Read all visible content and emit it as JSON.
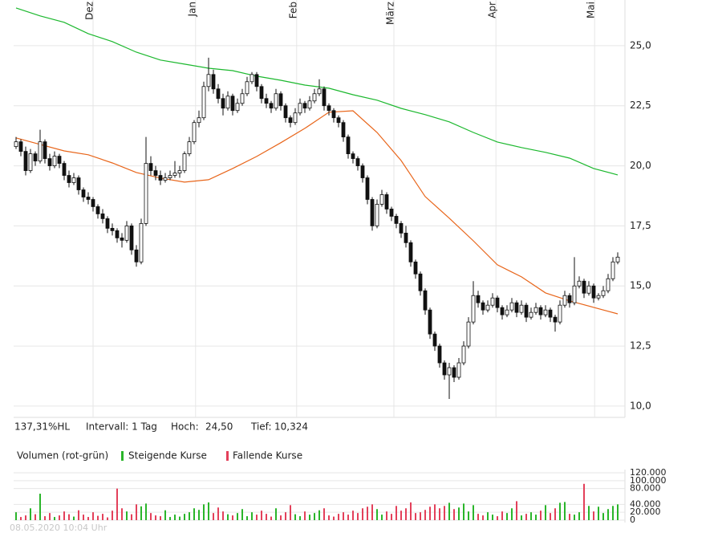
{
  "info": {
    "range": "137,31%HL",
    "interval": "Intervall: 1 Tag",
    "high_label": "Hoch:",
    "high": "24,50",
    "low_label": "Tief:",
    "low": "10,324",
    "timestamp": "08.05.2020 10:04 Uhr"
  },
  "chart_data": [
    {
      "type": "candlestick",
      "xlim": [
        -0.5,
        126.5
      ],
      "ylim": [
        9.53,
        26.9
      ],
      "xticks": [
        {
          "value": 16,
          "label": "Dez"
        },
        {
          "value": 37.3,
          "label": "Jan"
        },
        {
          "value": 58.3,
          "label": "Feb"
        },
        {
          "value": 78.5,
          "label": "März"
        },
        {
          "value": 99.7,
          "label": "Apr"
        },
        {
          "value": 120.2,
          "label": "Mai"
        }
      ],
      "yticks": [
        {
          "value": 10,
          "label": "10,0"
        },
        {
          "value": 12.5,
          "label": "12,5"
        },
        {
          "value": 15,
          "label": "15,0"
        },
        {
          "value": 17.5,
          "label": "17,5"
        },
        {
          "value": 20,
          "label": "20,0"
        },
        {
          "value": 22.5,
          "label": "22,5"
        },
        {
          "value": 25,
          "label": "25,0"
        }
      ],
      "grid": true,
      "up_color": "#ffffff",
      "down_color": "#111111",
      "candles": [
        [
          20.8,
          21.2,
          20.7,
          21.0
        ],
        [
          21.0,
          21.1,
          20.4,
          20.6
        ],
        [
          20.6,
          20.8,
          19.6,
          19.8
        ],
        [
          19.8,
          20.7,
          19.7,
          20.5
        ],
        [
          20.5,
          20.6,
          20.0,
          20.2
        ],
        [
          20.2,
          21.5,
          20.1,
          21.0
        ],
        [
          21.0,
          21.1,
          20.1,
          20.3
        ],
        [
          20.3,
          20.5,
          19.8,
          20.0
        ],
        [
          20.0,
          20.6,
          19.9,
          20.4
        ],
        [
          20.4,
          20.5,
          19.9,
          20.1
        ],
        [
          20.1,
          20.2,
          19.4,
          19.6
        ],
        [
          19.6,
          19.8,
          19.1,
          19.3
        ],
        [
          19.3,
          19.7,
          19.2,
          19.5
        ],
        [
          19.5,
          19.6,
          18.8,
          19.0
        ],
        [
          19.0,
          19.1,
          18.5,
          18.7
        ],
        [
          18.7,
          18.9,
          18.4,
          18.6
        ],
        [
          18.6,
          18.7,
          18.1,
          18.3
        ],
        [
          18.3,
          18.4,
          17.8,
          18.0
        ],
        [
          18.0,
          18.2,
          17.6,
          17.8
        ],
        [
          17.8,
          17.9,
          17.2,
          17.4
        ],
        [
          17.4,
          17.6,
          17.1,
          17.3
        ],
        [
          17.3,
          17.4,
          16.8,
          17.0
        ],
        [
          17.0,
          17.2,
          16.6,
          16.9
        ],
        [
          16.9,
          17.7,
          16.8,
          17.5
        ],
        [
          17.5,
          17.6,
          16.3,
          16.5
        ],
        [
          16.5,
          16.7,
          15.8,
          16.0
        ],
        [
          16.0,
          17.8,
          15.9,
          17.6
        ],
        [
          17.6,
          21.2,
          17.5,
          20.1
        ],
        [
          20.1,
          20.4,
          19.6,
          19.8
        ],
        [
          19.8,
          20.0,
          19.4,
          19.6
        ],
        [
          19.6,
          19.8,
          19.2,
          19.4
        ],
        [
          19.4,
          19.7,
          19.3,
          19.5
        ],
        [
          19.5,
          19.8,
          19.4,
          19.6
        ],
        [
          19.6,
          20.2,
          19.5,
          19.7
        ],
        [
          19.7,
          20.0,
          19.5,
          19.8
        ],
        [
          19.8,
          20.6,
          19.7,
          20.5
        ],
        [
          20.5,
          21.2,
          20.4,
          21.0
        ],
        [
          21.0,
          21.9,
          20.9,
          21.8
        ],
        [
          21.8,
          22.3,
          21.6,
          22.0
        ],
        [
          22.0,
          23.5,
          21.9,
          23.3
        ],
        [
          23.3,
          24.5,
          23.1,
          23.8
        ],
        [
          23.8,
          24.0,
          23.0,
          23.2
        ],
        [
          23.2,
          23.4,
          22.6,
          22.8
        ],
        [
          22.8,
          23.0,
          22.1,
          22.4
        ],
        [
          22.4,
          23.1,
          22.3,
          22.9
        ],
        [
          22.9,
          23.0,
          22.1,
          22.3
        ],
        [
          22.3,
          22.8,
          22.2,
          22.6
        ],
        [
          22.6,
          23.2,
          22.5,
          23.0
        ],
        [
          23.0,
          23.7,
          22.9,
          23.5
        ],
        [
          23.5,
          23.9,
          23.4,
          23.8
        ],
        [
          23.8,
          23.9,
          23.1,
          23.3
        ],
        [
          23.3,
          23.4,
          22.6,
          22.8
        ],
        [
          22.8,
          23.0,
          22.4,
          22.6
        ],
        [
          22.6,
          22.7,
          22.2,
          22.4
        ],
        [
          22.4,
          23.2,
          22.3,
          23.0
        ],
        [
          23.0,
          23.1,
          22.3,
          22.5
        ],
        [
          22.5,
          22.6,
          21.8,
          22.0
        ],
        [
          22.0,
          22.1,
          21.6,
          21.8
        ],
        [
          21.8,
          22.4,
          21.7,
          22.2
        ],
        [
          22.2,
          22.8,
          22.1,
          22.6
        ],
        [
          22.6,
          22.7,
          22.2,
          22.4
        ],
        [
          22.4,
          22.9,
          22.3,
          22.7
        ],
        [
          22.7,
          23.2,
          22.6,
          23.0
        ],
        [
          23.0,
          23.6,
          22.9,
          23.2
        ],
        [
          23.2,
          23.3,
          22.3,
          22.5
        ],
        [
          22.5,
          22.6,
          22.1,
          22.3
        ],
        [
          22.3,
          22.4,
          21.8,
          22.0
        ],
        [
          22.0,
          22.1,
          21.6,
          21.8
        ],
        [
          21.8,
          21.9,
          21.0,
          21.2
        ],
        [
          21.2,
          21.3,
          20.3,
          20.5
        ],
        [
          20.5,
          20.6,
          20.1,
          20.3
        ],
        [
          20.3,
          20.4,
          19.8,
          20.0
        ],
        [
          20.0,
          20.1,
          19.3,
          19.5
        ],
        [
          19.5,
          19.6,
          18.4,
          18.6
        ],
        [
          18.6,
          18.7,
          17.3,
          17.5
        ],
        [
          17.5,
          18.6,
          17.4,
          18.4
        ],
        [
          18.4,
          19.0,
          18.3,
          18.8
        ],
        [
          18.8,
          18.9,
          18.0,
          18.2
        ],
        [
          18.2,
          18.3,
          17.7,
          17.9
        ],
        [
          17.9,
          18.0,
          17.4,
          17.6
        ],
        [
          17.6,
          17.7,
          17.0,
          17.2
        ],
        [
          17.2,
          17.5,
          16.6,
          16.8
        ],
        [
          16.8,
          16.9,
          15.8,
          16.0
        ],
        [
          16.0,
          16.1,
          15.3,
          15.5
        ],
        [
          15.5,
          15.6,
          14.6,
          14.8
        ],
        [
          14.8,
          14.9,
          13.8,
          14.0
        ],
        [
          14.0,
          14.1,
          12.8,
          13.0
        ],
        [
          13.0,
          13.1,
          12.3,
          12.5
        ],
        [
          12.5,
          12.6,
          11.6,
          11.8
        ],
        [
          11.8,
          11.9,
          11.1,
          11.3
        ],
        [
          11.3,
          11.8,
          10.3,
          11.6
        ],
        [
          11.6,
          11.7,
          11.0,
          11.2
        ],
        [
          11.2,
          12.0,
          11.1,
          11.8
        ],
        [
          11.8,
          12.7,
          11.7,
          12.5
        ],
        [
          12.5,
          13.7,
          12.4,
          13.5
        ],
        [
          13.5,
          15.2,
          13.4,
          14.6
        ],
        [
          14.6,
          14.8,
          14.1,
          14.3
        ],
        [
          14.3,
          14.4,
          13.8,
          14.0
        ],
        [
          14.0,
          14.4,
          13.9,
          14.2
        ],
        [
          14.2,
          14.7,
          14.1,
          14.5
        ],
        [
          14.5,
          14.6,
          13.9,
          14.1
        ],
        [
          14.1,
          14.2,
          13.6,
          13.8
        ],
        [
          13.8,
          14.2,
          13.7,
          14.0
        ],
        [
          14.0,
          14.5,
          13.9,
          14.3
        ],
        [
          14.3,
          14.4,
          13.7,
          13.9
        ],
        [
          13.9,
          14.4,
          13.8,
          14.2
        ],
        [
          14.2,
          14.3,
          13.5,
          13.7
        ],
        [
          13.7,
          14.1,
          13.6,
          13.9
        ],
        [
          13.9,
          14.3,
          13.8,
          14.1
        ],
        [
          14.1,
          14.2,
          13.6,
          13.8
        ],
        [
          13.8,
          14.2,
          13.7,
          14.0
        ],
        [
          14.0,
          14.1,
          13.5,
          13.7
        ],
        [
          13.7,
          13.8,
          13.1,
          13.5
        ],
        [
          13.5,
          14.4,
          13.4,
          14.2
        ],
        [
          14.2,
          14.8,
          14.1,
          14.6
        ],
        [
          14.6,
          14.7,
          14.1,
          14.3
        ],
        [
          14.3,
          16.2,
          14.2,
          15.0
        ],
        [
          15.0,
          15.4,
          14.9,
          15.2
        ],
        [
          15.2,
          15.3,
          14.5,
          14.7
        ],
        [
          14.7,
          15.2,
          14.6,
          15.0
        ],
        [
          15.0,
          15.1,
          14.3,
          14.5
        ],
        [
          14.5,
          14.7,
          14.4,
          14.6
        ],
        [
          14.6,
          15.0,
          14.5,
          14.8
        ],
        [
          14.8,
          15.5,
          14.7,
          15.3
        ],
        [
          15.3,
          16.2,
          15.2,
          16.0
        ],
        [
          16.0,
          16.4,
          15.9,
          16.2
        ]
      ],
      "series": [
        {
          "color": "#e8651a",
          "x": [
            0,
            5,
            10,
            15,
            20,
            25,
            30,
            35,
            40,
            45,
            50,
            55,
            60,
            65,
            70,
            75,
            80,
            85,
            90,
            95,
            100,
            105,
            110,
            115,
            120,
            125
          ],
          "values": [
            21.16,
            20.89,
            20.62,
            20.46,
            20.12,
            19.72,
            19.49,
            19.32,
            19.42,
            19.89,
            20.39,
            20.96,
            21.56,
            22.23,
            22.29,
            21.39,
            20.22,
            18.72,
            17.82,
            16.88,
            15.88,
            15.38,
            14.71,
            14.38,
            14.11,
            13.84
          ]
        },
        {
          "color": "#1cb82e",
          "x": [
            0,
            5,
            10,
            15,
            20,
            25,
            30,
            35,
            40,
            45,
            50,
            55,
            60,
            65,
            70,
            75,
            80,
            85,
            90,
            95,
            100,
            105,
            110,
            115,
            120,
            125
          ],
          "values": [
            26.57,
            26.24,
            25.97,
            25.5,
            25.17,
            24.73,
            24.4,
            24.23,
            24.06,
            23.96,
            23.73,
            23.56,
            23.36,
            23.23,
            22.96,
            22.73,
            22.39,
            22.13,
            21.83,
            21.39,
            20.99,
            20.76,
            20.56,
            20.32,
            19.89,
            19.62
          ]
        }
      ]
    },
    {
      "type": "bar",
      "title": "Volumen (rot-grün)",
      "up_label": "Steigende Kurse",
      "down_label": "Fallende Kurse",
      "up_color": "#2ab52a",
      "down_color": "#e3405a",
      "xlim": [
        -0.5,
        126.5
      ],
      "ylim": [
        0,
        120000
      ],
      "yticks": [
        0,
        {
          "value": 20000,
          "label": "20.000"
        },
        {
          "value": 40000,
          "label": "40.000"
        },
        {
          "value": 80000,
          "label": "80.000"
        },
        {
          "value": 100000,
          "label": "100.000"
        },
        {
          "value": 120000,
          "label": "120.000"
        }
      ],
      "grid": true,
      "values": [
        20000,
        8000,
        12000,
        30000,
        15000,
        67000,
        10000,
        18000,
        8000,
        12000,
        22000,
        15000,
        9000,
        25000,
        14000,
        8000,
        20000,
        11000,
        16000,
        7000,
        24000,
        80000,
        30000,
        22000,
        15000,
        40000,
        35000,
        42000,
        18000,
        12000,
        10000,
        25000,
        8000,
        14000,
        9000,
        16000,
        20000,
        30000,
        26000,
        40000,
        45000,
        18000,
        32000,
        22000,
        15000,
        12000,
        18000,
        28000,
        10000,
        20000,
        14000,
        24000,
        16000,
        9000,
        30000,
        12000,
        20000,
        38000,
        15000,
        10000,
        22000,
        14000,
        18000,
        25000,
        30000,
        12000,
        9000,
        16000,
        20000,
        14000,
        24000,
        18000,
        30000,
        34000,
        40000,
        28000,
        14000,
        22000,
        16000,
        36000,
        24000,
        30000,
        45000,
        18000,
        20000,
        26000,
        34000,
        40000,
        30000,
        36000,
        44000,
        28000,
        32000,
        42000,
        22000,
        38000,
        16000,
        12000,
        20000,
        14000,
        10000,
        22000,
        18000,
        30000,
        48000,
        12000,
        16000,
        20000,
        14000,
        24000,
        38000,
        18000,
        30000,
        44000,
        46000,
        16000,
        14000,
        20000,
        92000,
        36000,
        22000,
        34000,
        18000,
        28000,
        36000,
        40000
      ]
    }
  ]
}
